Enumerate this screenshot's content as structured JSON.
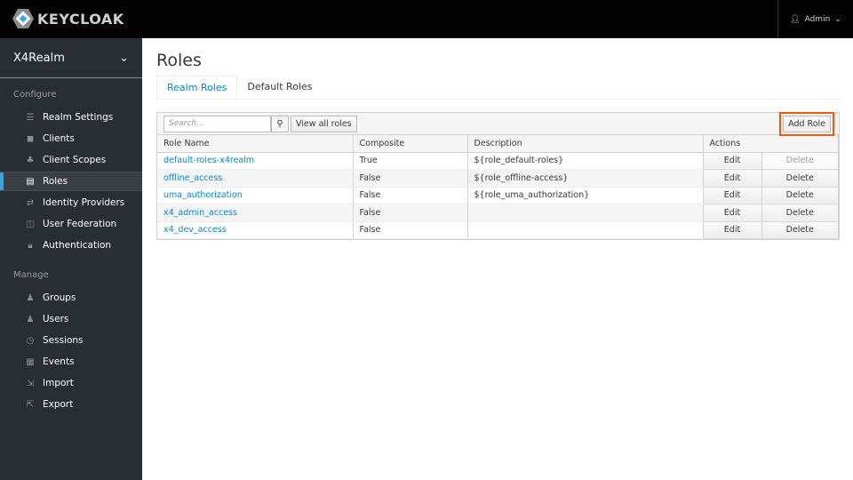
{
  "header": {
    "brand": "KEYCLOAK",
    "user": "Admin"
  },
  "sidebar": {
    "realm": "X4Realm",
    "configure_label": "Configure",
    "manage_label": "Manage",
    "configure": [
      {
        "label": "Realm Settings",
        "icon": "sliders-icon"
      },
      {
        "label": "Clients",
        "icon": "cube-icon"
      },
      {
        "label": "Client Scopes",
        "icon": "cubes-icon"
      },
      {
        "label": "Roles",
        "icon": "list-icon",
        "active": true
      },
      {
        "label": "Identity Providers",
        "icon": "exchange-icon"
      },
      {
        "label": "User Federation",
        "icon": "database-icon"
      },
      {
        "label": "Authentication",
        "icon": "lock-icon"
      }
    ],
    "manage": [
      {
        "label": "Groups",
        "icon": "users-icon"
      },
      {
        "label": "Users",
        "icon": "user-icon"
      },
      {
        "label": "Sessions",
        "icon": "clock-icon"
      },
      {
        "label": "Events",
        "icon": "calendar-icon"
      },
      {
        "label": "Import",
        "icon": "import-icon"
      },
      {
        "label": "Export",
        "icon": "export-icon"
      }
    ]
  },
  "page": {
    "title": "Roles",
    "tabs": [
      "Realm Roles",
      "Default Roles"
    ]
  },
  "toolbar": {
    "search_placeholder": "Search...",
    "view_all": "View all roles",
    "add_role": "Add Role"
  },
  "table": {
    "headers": [
      "Role Name",
      "Composite",
      "Description",
      "Actions"
    ],
    "rows": [
      {
        "name": "default-roles-x4realm",
        "composite": "True",
        "description": "${role_default-roles}",
        "edit": "Edit",
        "delete": "Delete",
        "delete_disabled": true
      },
      {
        "name": "offline_access",
        "composite": "False",
        "description": "${role_offline-access}",
        "edit": "Edit",
        "delete": "Delete"
      },
      {
        "name": "uma_authorization",
        "composite": "False",
        "description": "${role_uma_authorization}",
        "edit": "Edit",
        "delete": "Delete"
      },
      {
        "name": "x4_admin_access",
        "composite": "False",
        "description": "",
        "edit": "Edit",
        "delete": "Delete"
      },
      {
        "name": "x4_dev_access",
        "composite": "False",
        "description": "",
        "edit": "Edit",
        "delete": "Delete"
      }
    ]
  },
  "colors": {
    "accent": "#0088ce",
    "highlight": "#ec5a0c",
    "sidebar": "#292e34"
  }
}
